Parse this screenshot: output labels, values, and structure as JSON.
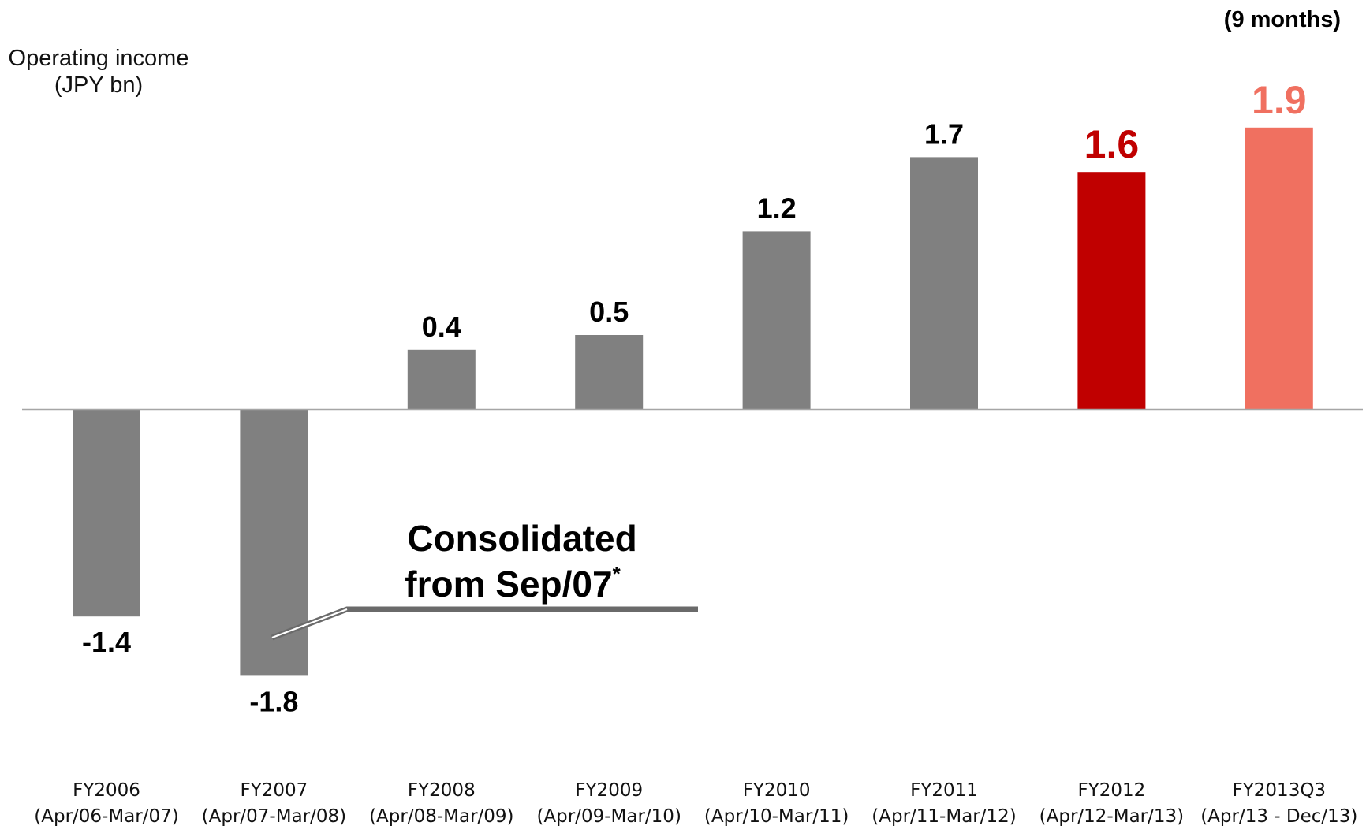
{
  "chart_data": {
    "type": "bar",
    "ylabel_line1": "Operating income",
    "ylabel_line2": "(JPY bn)",
    "period_note": "(9 months)",
    "annotation_line1": "Consolidated",
    "annotation_line2": "from Sep/07",
    "annotation_marker": "*",
    "categories": [
      {
        "name": "FY2006",
        "period": "(Apr/06-Mar/07)"
      },
      {
        "name": "FY2007",
        "period": "(Apr/07-Mar/08)"
      },
      {
        "name": "FY2008",
        "period": "(Apr/08-Mar/09)"
      },
      {
        "name": "FY2009",
        "period": "(Apr/09-Mar/10)"
      },
      {
        "name": "FY2010",
        "period": "(Apr/10-Mar/11)"
      },
      {
        "name": "FY2011",
        "period": "(Apr/11-Mar/12)"
      },
      {
        "name": "FY2012",
        "period": "(Apr/12-Mar/13)"
      },
      {
        "name": "FY2013Q3",
        "period": "(Apr/13 - Dec/13)"
      }
    ],
    "values": [
      -1.4,
      -1.8,
      0.4,
      0.5,
      1.2,
      1.7,
      1.6,
      1.9
    ],
    "value_labels": [
      "-1.4",
      "-1.8",
      "0.4",
      "0.5",
      "1.2",
      "1.7",
      "1.6",
      "1.9"
    ],
    "bar_colors": [
      "#808080",
      "#808080",
      "#808080",
      "#808080",
      "#808080",
      "#808080",
      "#c00000",
      "#f07060"
    ],
    "label_colors": [
      "#000000",
      "#000000",
      "#000000",
      "#000000",
      "#000000",
      "#000000",
      "#c00000",
      "#f07060"
    ],
    "highlight": [
      false,
      false,
      false,
      false,
      false,
      false,
      true,
      true
    ],
    "grid": false
  }
}
